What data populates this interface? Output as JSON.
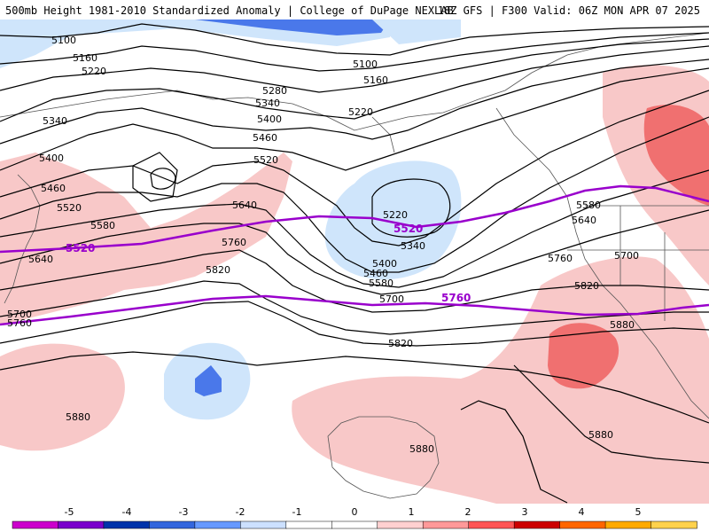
{
  "header": {
    "left_title": "500mb Height 1981-2010 Standardized Anomaly | College of DuPage NEXLAB",
    "right_title": "18Z GFS | F300 Valid: 06Z MON APR 07 2025"
  },
  "height_labels": [
    "5100",
    "5160",
    "5220",
    "5280",
    "5340",
    "5400",
    "5460",
    "5520",
    "5580",
    "5640",
    "5700",
    "5760",
    "5820",
    "5880"
  ],
  "map_labels": {
    "l5100a": "5100",
    "l5160a": "5160",
    "l5220a": "5220",
    "l5340a": "5340",
    "l5400a": "5400",
    "l5460a": "5460",
    "l5520a": "5520",
    "l5580a": "5580",
    "l5640a": "5640",
    "l5700a": "5700",
    "l5760a": "5760",
    "l5100b": "5100",
    "l5160b": "5160",
    "l5220b": "5220",
    "l5280b": "5280",
    "l5340b": "5340",
    "l5400b": "5400",
    "l5460b": "5460",
    "l5520b": "5520",
    "l5640b": "5640",
    "l5760b": "5760",
    "l5820b": "5820",
    "l5220c": "5220",
    "l5340c": "5340",
    "l5400c": "5400",
    "l5460c": "5460",
    "l5580c": "5580",
    "l5700c": "5700",
    "l5820c": "5820",
    "l5580d": "5580",
    "l5640d": "5640",
    "l5700d": "5700",
    "l5760d": "5760",
    "l5820d": "5820",
    "l5880d": "5880",
    "l5880e": "5880",
    "l5880f": "5880",
    "l5880g": "5880"
  },
  "purple_labels": {
    "p5520a": "5520",
    "p5520b": "5520",
    "p5760": "5760"
  },
  "colorbar": {
    "ticks": [
      "-5",
      "-4",
      "-3",
      "-2",
      "-1",
      "0",
      "1",
      "2",
      "3",
      "4",
      "5"
    ],
    "colors": [
      "#cc00cc",
      "#7a00cc",
      "#0033aa",
      "#3366dd",
      "#6699ff",
      "#cce0ff",
      "#ffffff",
      "#ffffff",
      "#ffd0d0",
      "#ff9999",
      "#ff5555",
      "#cc0000",
      "#ff6600",
      "#ffaa00",
      "#ffd24d"
    ]
  },
  "anomaly_colors": {
    "light_blue": "#cfe5fb",
    "mid_blue": "#4a78ea",
    "light_red": "#f8c8c8",
    "mid_red": "#f07070",
    "land_outline": "#555555",
    "purple_contour": "#9900cc"
  }
}
